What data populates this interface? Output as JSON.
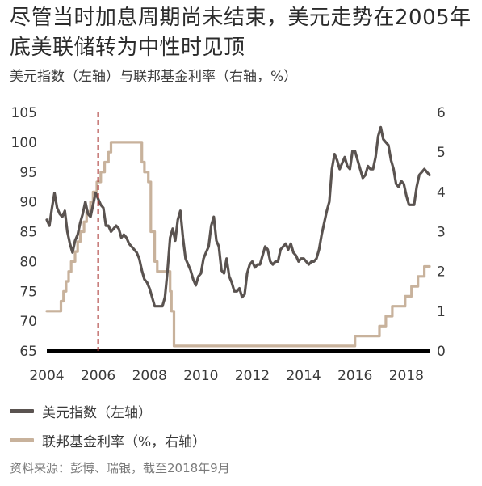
{
  "title": "尽管当时加息周期尚未结束，美元走势在2005年底美联储转为中性时见顶",
  "subtitle": "美元指数（左轴）与联邦基金利率（右轴，%）",
  "source": "资料来源：彭博、瑞银，截至2018年9月",
  "colors": {
    "dxy": "#5a5350",
    "fedfunds": "#c8b29c",
    "marker": "#a8322f",
    "baseline": "#000000",
    "text": "#3a3a3a"
  },
  "chart_data": {
    "type": "line",
    "x_range": [
      2004,
      2018.9
    ],
    "y_left_range": [
      65,
      105
    ],
    "y_right_range": [
      0,
      6
    ],
    "x_ticks": [
      "2004",
      "2006",
      "2008",
      "2010",
      "2012",
      "2014",
      "2016",
      "2018"
    ],
    "y_left_ticks": [
      "65",
      "70",
      "75",
      "80",
      "85",
      "90",
      "95",
      "100",
      "105"
    ],
    "y_right_ticks": [
      "0",
      "1",
      "2",
      "3",
      "4",
      "5",
      "6"
    ],
    "annotations": [
      {
        "type": "vertical-dashed-line",
        "x": 2006.0
      }
    ],
    "series": [
      {
        "name": "美元指数（左轴）",
        "axis": "left",
        "points": [
          [
            2004.0,
            87.0
          ],
          [
            2004.1,
            86.0
          ],
          [
            2004.2,
            89.0
          ],
          [
            2004.3,
            91.5
          ],
          [
            2004.4,
            89.0
          ],
          [
            2004.5,
            88.0
          ],
          [
            2004.6,
            87.5
          ],
          [
            2004.7,
            88.5
          ],
          [
            2004.8,
            85.0
          ],
          [
            2004.9,
            83.0
          ],
          [
            2005.0,
            81.5
          ],
          [
            2005.1,
            83.5
          ],
          [
            2005.2,
            84.5
          ],
          [
            2005.3,
            86.5
          ],
          [
            2005.4,
            88.0
          ],
          [
            2005.5,
            90.0
          ],
          [
            2005.6,
            88.0
          ],
          [
            2005.7,
            87.5
          ],
          [
            2005.8,
            89.5
          ],
          [
            2005.9,
            91.5
          ],
          [
            2006.0,
            90.5
          ],
          [
            2006.1,
            89.5
          ],
          [
            2006.2,
            89.0
          ],
          [
            2006.3,
            86.0
          ],
          [
            2006.4,
            86.0
          ],
          [
            2006.5,
            85.0
          ],
          [
            2006.6,
            85.5
          ],
          [
            2006.7,
            86.0
          ],
          [
            2006.8,
            85.5
          ],
          [
            2006.9,
            84.0
          ],
          [
            2007.0,
            84.5
          ],
          [
            2007.1,
            84.0
          ],
          [
            2007.2,
            83.0
          ],
          [
            2007.3,
            82.5
          ],
          [
            2007.4,
            82.0
          ],
          [
            2007.5,
            81.5
          ],
          [
            2007.6,
            80.5
          ],
          [
            2007.7,
            78.5
          ],
          [
            2007.8,
            77.0
          ],
          [
            2007.9,
            76.5
          ],
          [
            2008.0,
            75.5
          ],
          [
            2008.1,
            74.0
          ],
          [
            2008.2,
            72.5
          ],
          [
            2008.3,
            72.5
          ],
          [
            2008.4,
            72.5
          ],
          [
            2008.5,
            72.5
          ],
          [
            2008.6,
            74.0
          ],
          [
            2008.7,
            78.5
          ],
          [
            2008.8,
            84.0
          ],
          [
            2008.9,
            85.5
          ],
          [
            2009.0,
            83.5
          ],
          [
            2009.1,
            87.0
          ],
          [
            2009.2,
            88.5
          ],
          [
            2009.3,
            84.0
          ],
          [
            2009.4,
            80.5
          ],
          [
            2009.5,
            79.5
          ],
          [
            2009.6,
            78.5
          ],
          [
            2009.7,
            77.0
          ],
          [
            2009.8,
            76.0
          ],
          [
            2009.9,
            77.5
          ],
          [
            2010.0,
            78.0
          ],
          [
            2010.1,
            80.5
          ],
          [
            2010.2,
            81.5
          ],
          [
            2010.3,
            82.5
          ],
          [
            2010.4,
            86.0
          ],
          [
            2010.5,
            87.5
          ],
          [
            2010.6,
            83.5
          ],
          [
            2010.7,
            82.5
          ],
          [
            2010.8,
            78.5
          ],
          [
            2010.9,
            78.0
          ],
          [
            2011.0,
            80.5
          ],
          [
            2011.1,
            77.5
          ],
          [
            2011.2,
            76.5
          ],
          [
            2011.3,
            75.0
          ],
          [
            2011.4,
            75.0
          ],
          [
            2011.5,
            75.5
          ],
          [
            2011.6,
            74.0
          ],
          [
            2011.7,
            74.5
          ],
          [
            2011.8,
            78.0
          ],
          [
            2011.9,
            79.5
          ],
          [
            2012.0,
            80.0
          ],
          [
            2012.1,
            79.0
          ],
          [
            2012.2,
            79.5
          ],
          [
            2012.3,
            79.5
          ],
          [
            2012.4,
            81.0
          ],
          [
            2012.5,
            82.5
          ],
          [
            2012.6,
            82.0
          ],
          [
            2012.7,
            80.0
          ],
          [
            2012.8,
            79.5
          ],
          [
            2012.9,
            80.0
          ],
          [
            2013.0,
            80.0
          ],
          [
            2013.1,
            82.0
          ],
          [
            2013.2,
            82.5
          ],
          [
            2013.3,
            83.0
          ],
          [
            2013.4,
            82.0
          ],
          [
            2013.5,
            83.0
          ],
          [
            2013.6,
            81.5
          ],
          [
            2013.7,
            81.0
          ],
          [
            2013.8,
            80.0
          ],
          [
            2013.9,
            80.5
          ],
          [
            2014.0,
            80.5
          ],
          [
            2014.1,
            80.0
          ],
          [
            2014.2,
            79.5
          ],
          [
            2014.3,
            80.0
          ],
          [
            2014.4,
            80.0
          ],
          [
            2014.5,
            80.5
          ],
          [
            2014.6,
            82.0
          ],
          [
            2014.7,
            84.5
          ],
          [
            2014.8,
            86.5
          ],
          [
            2014.9,
            88.5
          ],
          [
            2015.0,
            90.0
          ],
          [
            2015.1,
            95.5
          ],
          [
            2015.2,
            98.0
          ],
          [
            2015.3,
            97.0
          ],
          [
            2015.4,
            95.5
          ],
          [
            2015.5,
            96.5
          ],
          [
            2015.6,
            97.5
          ],
          [
            2015.7,
            96.0
          ],
          [
            2015.8,
            95.5
          ],
          [
            2015.9,
            98.5
          ],
          [
            2016.0,
            98.5
          ],
          [
            2016.1,
            97.0
          ],
          [
            2016.2,
            95.5
          ],
          [
            2016.3,
            94.0
          ],
          [
            2016.4,
            94.5
          ],
          [
            2016.5,
            96.0
          ],
          [
            2016.6,
            95.5
          ],
          [
            2016.7,
            95.5
          ],
          [
            2016.8,
            97.5
          ],
          [
            2016.9,
            101.0
          ],
          [
            2017.0,
            102.5
          ],
          [
            2017.1,
            100.5
          ],
          [
            2017.2,
            100.0
          ],
          [
            2017.3,
            99.5
          ],
          [
            2017.4,
            97.0
          ],
          [
            2017.5,
            95.5
          ],
          [
            2017.6,
            93.0
          ],
          [
            2017.7,
            92.5
          ],
          [
            2017.8,
            93.5
          ],
          [
            2017.9,
            93.0
          ],
          [
            2018.0,
            91.0
          ],
          [
            2018.1,
            89.5
          ],
          [
            2018.2,
            89.5
          ],
          [
            2018.3,
            89.5
          ],
          [
            2018.4,
            92.5
          ],
          [
            2018.5,
            94.5
          ],
          [
            2018.6,
            95.0
          ],
          [
            2018.7,
            95.5
          ],
          [
            2018.8,
            95.0
          ],
          [
            2018.9,
            94.5
          ]
        ]
      },
      {
        "name": "联邦基金利率（%，右轴）",
        "axis": "right",
        "points": [
          [
            2004.0,
            1.0
          ],
          [
            2004.5,
            1.0
          ],
          [
            2004.55,
            1.25
          ],
          [
            2004.65,
            1.5
          ],
          [
            2004.75,
            1.75
          ],
          [
            2004.85,
            2.0
          ],
          [
            2004.95,
            2.25
          ],
          [
            2005.1,
            2.5
          ],
          [
            2005.2,
            2.75
          ],
          [
            2005.3,
            3.0
          ],
          [
            2005.45,
            3.25
          ],
          [
            2005.55,
            3.5
          ],
          [
            2005.7,
            3.75
          ],
          [
            2005.8,
            4.0
          ],
          [
            2005.95,
            4.25
          ],
          [
            2006.1,
            4.5
          ],
          [
            2006.25,
            4.75
          ],
          [
            2006.4,
            5.0
          ],
          [
            2006.5,
            5.25
          ],
          [
            2007.65,
            5.25
          ],
          [
            2007.7,
            4.75
          ],
          [
            2007.8,
            4.5
          ],
          [
            2007.95,
            4.25
          ],
          [
            2008.05,
            3.0
          ],
          [
            2008.2,
            2.25
          ],
          [
            2008.3,
            2.0
          ],
          [
            2008.8,
            1.5
          ],
          [
            2008.85,
            1.0
          ],
          [
            2008.95,
            0.125
          ],
          [
            2015.95,
            0.125
          ],
          [
            2016.0,
            0.375
          ],
          [
            2016.95,
            0.625
          ],
          [
            2017.2,
            0.875
          ],
          [
            2017.45,
            1.125
          ],
          [
            2017.95,
            1.375
          ],
          [
            2018.2,
            1.625
          ],
          [
            2018.45,
            1.875
          ],
          [
            2018.7,
            2.125
          ],
          [
            2018.9,
            2.125
          ]
        ]
      }
    ]
  }
}
